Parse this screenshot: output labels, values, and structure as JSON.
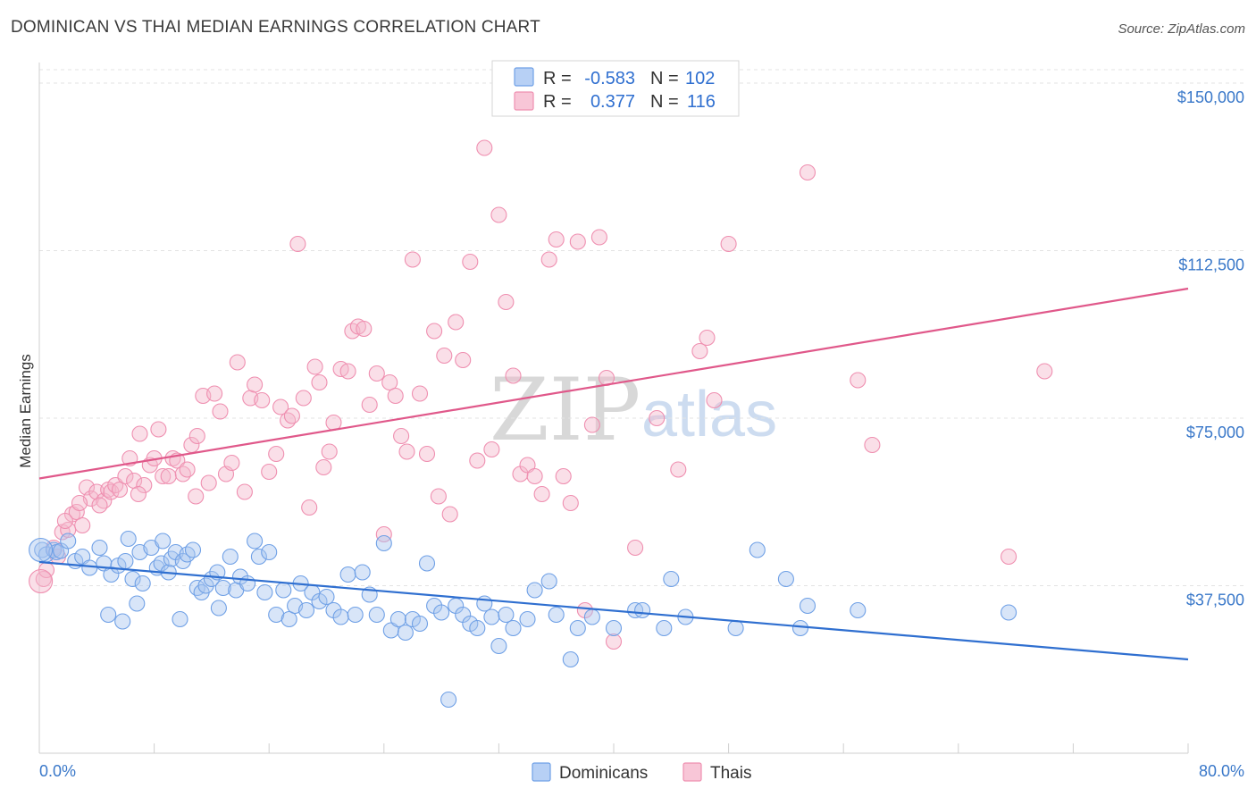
{
  "title": "DOMINICAN VS THAI MEDIAN EARNINGS CORRELATION CHART",
  "source": "Source: ZipAtlas.com",
  "watermark": {
    "zip": "ZIP",
    "atlas": "atlas"
  },
  "legend": {
    "r_label": "R =",
    "n_label": "N =",
    "rows": [
      {
        "name": "Dominicans",
        "r": "-0.583",
        "n": "102",
        "color": "#6fa0e6",
        "fill": "#b7d0f5"
      },
      {
        "name": "Thais",
        "r": "0.377",
        "n": "116",
        "color": "#ef8fb0",
        "fill": "#f8c6d7"
      }
    ]
  },
  "chart_data": {
    "type": "scatter",
    "title": "DOMINICAN VS THAI MEDIAN EARNINGS CORRELATION CHART",
    "xlabel": "",
    "ylabel": "Median Earnings",
    "xlim": [
      0,
      80
    ],
    "ylim": [
      0,
      155000
    ],
    "x_tick_labels": {
      "min": "0.0%",
      "max": "80.0%"
    },
    "y_ticks": [
      {
        "value": 37500,
        "label": "$37,500"
      },
      {
        "value": 75000,
        "label": "$75,000"
      },
      {
        "value": 112500,
        "label": "$112,500"
      },
      {
        "value": 150000,
        "label": "$150,000"
      }
    ],
    "series": [
      {
        "name": "Dominicans",
        "color": "#3a78d4",
        "fill": "#a9c6f0",
        "trend": {
          "x0": 0,
          "y0": 42800,
          "x1": 80,
          "y1": 21000
        },
        "points": [
          [
            0.2,
            45500
          ],
          [
            0.5,
            44500
          ],
          [
            1.0,
            45500
          ],
          [
            1.2,
            45000
          ],
          [
            1.5,
            45300
          ],
          [
            2.0,
            47500
          ],
          [
            2.5,
            43000
          ],
          [
            3.0,
            44000
          ],
          [
            3.5,
            41500
          ],
          [
            4.2,
            46000
          ],
          [
            4.5,
            42500
          ],
          [
            5.0,
            40000
          ],
          [
            5.5,
            42000
          ],
          [
            6.0,
            43000
          ],
          [
            6.2,
            48000
          ],
          [
            6.5,
            39000
          ],
          [
            7.0,
            45000
          ],
          [
            7.2,
            38000
          ],
          [
            7.8,
            46000
          ],
          [
            8.2,
            41500
          ],
          [
            8.5,
            42500
          ],
          [
            8.6,
            47500
          ],
          [
            9.0,
            40500
          ],
          [
            9.2,
            43500
          ],
          [
            9.5,
            45000
          ],
          [
            10.0,
            43000
          ],
          [
            10.3,
            44500
          ],
          [
            10.7,
            45500
          ],
          [
            11.0,
            37000
          ],
          [
            11.3,
            36000
          ],
          [
            11.6,
            37500
          ],
          [
            12.0,
            39000
          ],
          [
            12.4,
            40500
          ],
          [
            12.8,
            37000
          ],
          [
            13.3,
            44000
          ],
          [
            13.7,
            36500
          ],
          [
            14.0,
            39500
          ],
          [
            14.5,
            38000
          ],
          [
            15.0,
            47500
          ],
          [
            15.3,
            44000
          ],
          [
            15.7,
            36000
          ],
          [
            16.0,
            45000
          ],
          [
            16.5,
            31000
          ],
          [
            17.0,
            36500
          ],
          [
            17.4,
            30000
          ],
          [
            17.8,
            33000
          ],
          [
            18.2,
            38000
          ],
          [
            18.6,
            32000
          ],
          [
            19.0,
            36000
          ],
          [
            19.5,
            34000
          ],
          [
            20.0,
            35000
          ],
          [
            20.5,
            32000
          ],
          [
            21.0,
            30500
          ],
          [
            21.5,
            40000
          ],
          [
            22.0,
            31000
          ],
          [
            22.5,
            40500
          ],
          [
            23.0,
            35500
          ],
          [
            23.5,
            31000
          ],
          [
            24.0,
            47000
          ],
          [
            24.5,
            27500
          ],
          [
            25.0,
            30000
          ],
          [
            25.5,
            27000
          ],
          [
            26.0,
            30000
          ],
          [
            26.5,
            29000
          ],
          [
            27.0,
            42500
          ],
          [
            27.5,
            33000
          ],
          [
            28.0,
            31500
          ],
          [
            28.5,
            12000
          ],
          [
            29.0,
            33000
          ],
          [
            29.5,
            31000
          ],
          [
            30.0,
            29000
          ],
          [
            30.5,
            28000
          ],
          [
            31.0,
            33500
          ],
          [
            31.5,
            30500
          ],
          [
            32.0,
            24000
          ],
          [
            32.5,
            31000
          ],
          [
            33.0,
            28000
          ],
          [
            34.0,
            30000
          ],
          [
            34.5,
            36500
          ],
          [
            35.5,
            38500
          ],
          [
            36.0,
            31000
          ],
          [
            37.0,
            21000
          ],
          [
            37.5,
            28000
          ],
          [
            38.5,
            30500
          ],
          [
            40.0,
            28000
          ],
          [
            41.5,
            32000
          ],
          [
            42.0,
            32000
          ],
          [
            43.5,
            28000
          ],
          [
            44.0,
            39000
          ],
          [
            45.0,
            30500
          ],
          [
            48.5,
            28000
          ],
          [
            50.0,
            45500
          ],
          [
            52.0,
            39000
          ],
          [
            53.0,
            28000
          ],
          [
            53.5,
            33000
          ],
          [
            57.0,
            32000
          ],
          [
            67.5,
            31500
          ],
          [
            5.8,
            29500
          ],
          [
            4.8,
            31000
          ],
          [
            12.5,
            32500
          ],
          [
            9.8,
            30000
          ],
          [
            6.8,
            33500
          ]
        ]
      },
      {
        "name": "Thais",
        "color": "#e05a8a",
        "fill": "#f4b9cd",
        "trend": {
          "x0": 0,
          "y0": 61500,
          "x1": 80,
          "y1": 104000
        },
        "points": [
          [
            0.3,
            39000
          ],
          [
            0.5,
            41000
          ],
          [
            1.0,
            46000
          ],
          [
            1.3,
            44000
          ],
          [
            1.6,
            49500
          ],
          [
            2.0,
            50000
          ],
          [
            2.3,
            53500
          ],
          [
            2.6,
            54000
          ],
          [
            3.0,
            51000
          ],
          [
            3.3,
            59500
          ],
          [
            3.6,
            57000
          ],
          [
            4.0,
            58500
          ],
          [
            4.5,
            56500
          ],
          [
            4.8,
            59000
          ],
          [
            5.0,
            58500
          ],
          [
            5.3,
            60000
          ],
          [
            5.6,
            59000
          ],
          [
            6.0,
            62000
          ],
          [
            6.3,
            66000
          ],
          [
            6.6,
            61000
          ],
          [
            7.0,
            71500
          ],
          [
            7.3,
            60000
          ],
          [
            7.7,
            64500
          ],
          [
            8.0,
            66000
          ],
          [
            8.3,
            72500
          ],
          [
            8.6,
            62000
          ],
          [
            9.0,
            62000
          ],
          [
            9.3,
            66000
          ],
          [
            9.6,
            65500
          ],
          [
            10.0,
            62500
          ],
          [
            10.3,
            63500
          ],
          [
            10.6,
            69000
          ],
          [
            11.0,
            71000
          ],
          [
            11.4,
            80000
          ],
          [
            11.8,
            60500
          ],
          [
            12.2,
            80500
          ],
          [
            12.6,
            76500
          ],
          [
            13.0,
            62500
          ],
          [
            13.4,
            65000
          ],
          [
            13.8,
            87500
          ],
          [
            14.3,
            58500
          ],
          [
            14.7,
            79500
          ],
          [
            15.0,
            82500
          ],
          [
            15.5,
            79000
          ],
          [
            16.0,
            63000
          ],
          [
            16.5,
            67000
          ],
          [
            16.8,
            77500
          ],
          [
            17.3,
            74500
          ],
          [
            17.6,
            75500
          ],
          [
            18.0,
            114000
          ],
          [
            18.4,
            79500
          ],
          [
            18.8,
            55000
          ],
          [
            19.2,
            86500
          ],
          [
            19.5,
            83000
          ],
          [
            19.8,
            64000
          ],
          [
            20.2,
            67500
          ],
          [
            20.5,
            74000
          ],
          [
            21.0,
            86000
          ],
          [
            21.5,
            85500
          ],
          [
            21.8,
            94500
          ],
          [
            22.2,
            95500
          ],
          [
            22.6,
            95000
          ],
          [
            23.0,
            78000
          ],
          [
            23.5,
            85000
          ],
          [
            24.0,
            49000
          ],
          [
            24.4,
            83000
          ],
          [
            24.8,
            80000
          ],
          [
            25.2,
            71000
          ],
          [
            25.6,
            67500
          ],
          [
            26.0,
            110500
          ],
          [
            26.5,
            80500
          ],
          [
            27.0,
            67000
          ],
          [
            27.5,
            94500
          ],
          [
            27.8,
            57500
          ],
          [
            28.2,
            89000
          ],
          [
            28.6,
            53500
          ],
          [
            29.0,
            96500
          ],
          [
            29.5,
            88000
          ],
          [
            30.0,
            110000
          ],
          [
            30.5,
            65500
          ],
          [
            31.0,
            135500
          ],
          [
            31.5,
            68000
          ],
          [
            32.0,
            120500
          ],
          [
            32.5,
            101000
          ],
          [
            33.0,
            84500
          ],
          [
            33.5,
            62500
          ],
          [
            34.0,
            64500
          ],
          [
            34.5,
            62000
          ],
          [
            35.0,
            58000
          ],
          [
            35.5,
            110500
          ],
          [
            36.0,
            115000
          ],
          [
            36.5,
            62000
          ],
          [
            37.0,
            56000
          ],
          [
            37.5,
            114500
          ],
          [
            38.0,
            32000
          ],
          [
            38.5,
            73500
          ],
          [
            39.0,
            115500
          ],
          [
            39.5,
            84000
          ],
          [
            40.0,
            25000
          ],
          [
            41.5,
            46000
          ],
          [
            43.0,
            75000
          ],
          [
            44.5,
            63500
          ],
          [
            46.0,
            90000
          ],
          [
            46.5,
            93000
          ],
          [
            47.0,
            79000
          ],
          [
            48.0,
            114000
          ],
          [
            53.5,
            130000
          ],
          [
            57.0,
            83500
          ],
          [
            58.0,
            69000
          ],
          [
            67.5,
            44000
          ],
          [
            70.0,
            85500
          ],
          [
            2.8,
            56000
          ],
          [
            6.9,
            58000
          ],
          [
            1.8,
            52000
          ],
          [
            10.9,
            57500
          ],
          [
            4.2,
            55500
          ]
        ]
      }
    ]
  },
  "bottom_legend": [
    {
      "name": "Dominicans"
    },
    {
      "name": "Thais"
    }
  ]
}
